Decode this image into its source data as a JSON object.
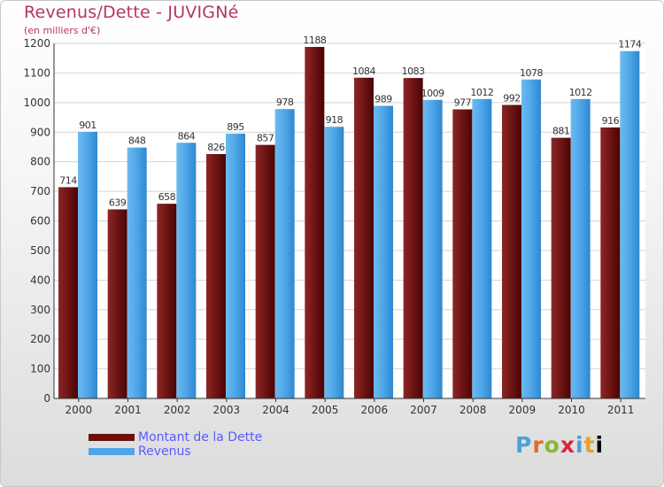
{
  "header": {
    "title": "Revenus/Dette - JUVIGNé",
    "subtitle": "(en milliers d'€)"
  },
  "logo": {
    "letters": [
      "P",
      "r",
      "o",
      "x",
      "i",
      "t",
      "i"
    ]
  },
  "colors": {
    "title": "#b5365f",
    "dette": "#6b0f0f",
    "revenus": "#4ea6e8",
    "legend_text": "#5a5aff"
  },
  "chart_data": {
    "type": "bar",
    "categories": [
      "2000",
      "2001",
      "2002",
      "2003",
      "2004",
      "2005",
      "2006",
      "2007",
      "2008",
      "2009",
      "2010",
      "2011"
    ],
    "series": [
      {
        "name": "Montant de la Dette",
        "values": [
          714,
          639,
          658,
          826,
          857,
          1188,
          1084,
          1083,
          977,
          992,
          881,
          916
        ]
      },
      {
        "name": "Revenus",
        "values": [
          901,
          848,
          864,
          895,
          978,
          918,
          989,
          1009,
          1012,
          1078,
          1012,
          1174
        ]
      }
    ],
    "ylim": [
      0,
      1200
    ],
    "yticks": [
      0,
      100,
      200,
      300,
      400,
      500,
      600,
      700,
      800,
      900,
      1000,
      1100,
      1200
    ],
    "grid": true,
    "legend": "bottom-left"
  }
}
